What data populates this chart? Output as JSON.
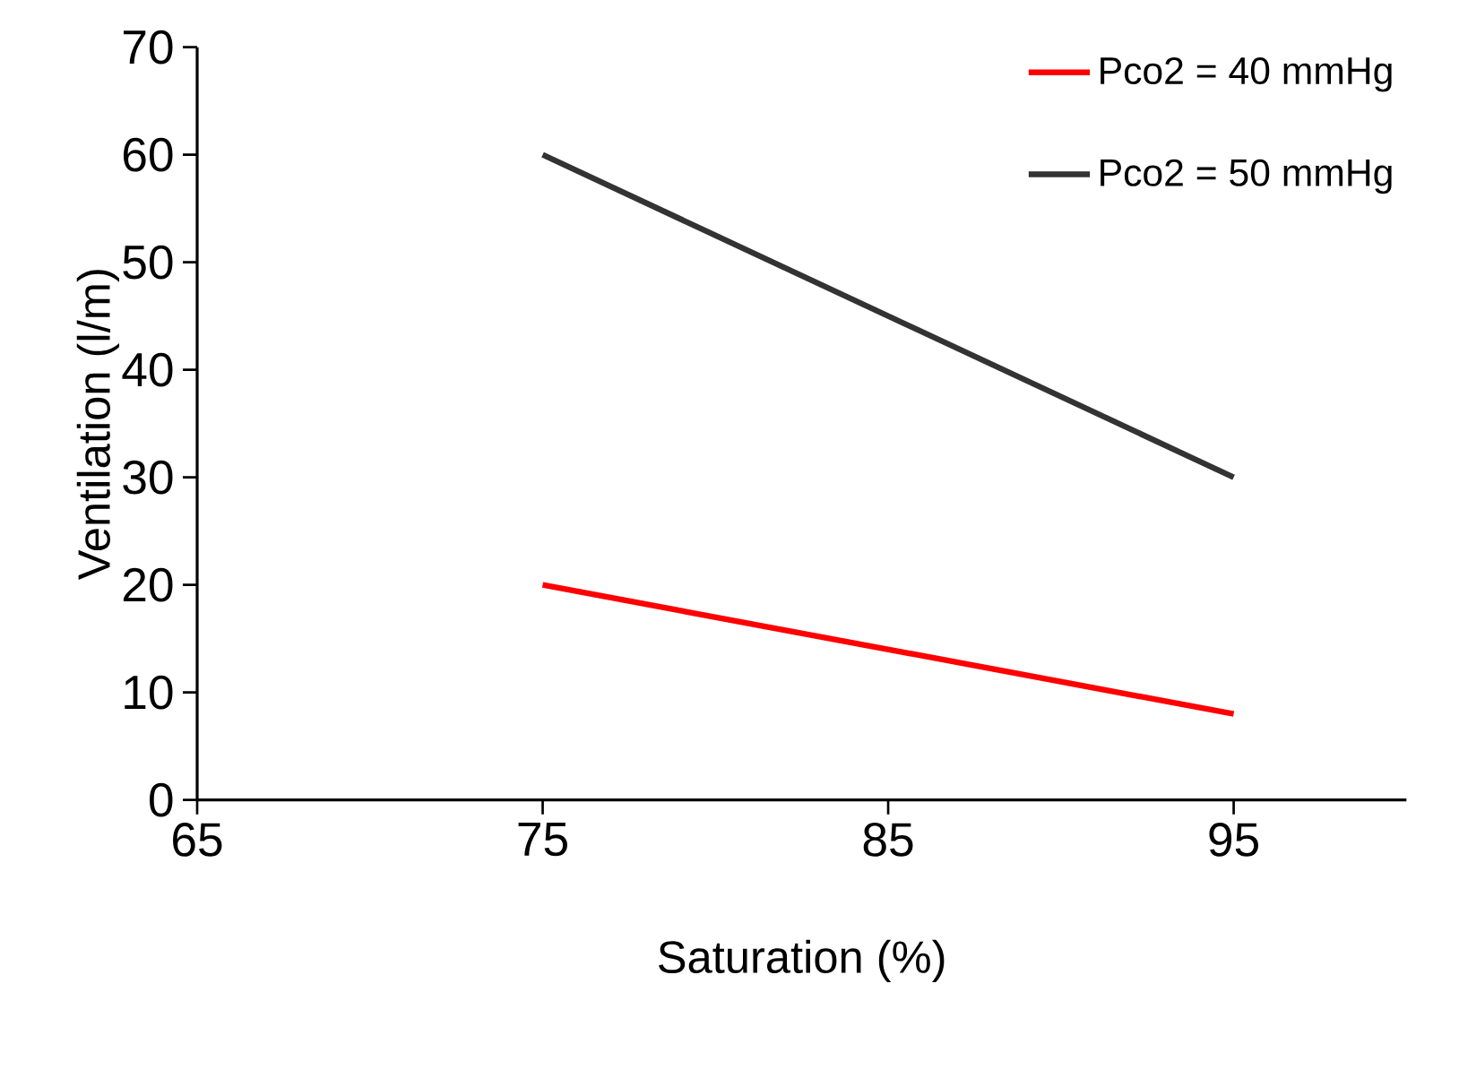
{
  "chart_data": {
    "type": "line",
    "xlabel": "Saturation (%)",
    "ylabel": "Ventilation   (l/m)",
    "xlim": [
      65,
      100
    ],
    "xticks": [
      65,
      75,
      85,
      95
    ],
    "ylim": [
      0,
      70
    ],
    "yticks": [
      0,
      10,
      20,
      30,
      40,
      50,
      60,
      70
    ],
    "x": [
      75,
      95
    ],
    "grid": false,
    "legend": "top right",
    "marker": "none",
    "line_style": "solid",
    "series": [
      {
        "name": "Pco2 = 40 mmHg",
        "color": "#ff0000",
        "values": [
          20,
          8
        ]
      },
      {
        "name": "Pco2 = 50 mmHg",
        "color": "#333333",
        "values": [
          60,
          30
        ]
      }
    ]
  }
}
